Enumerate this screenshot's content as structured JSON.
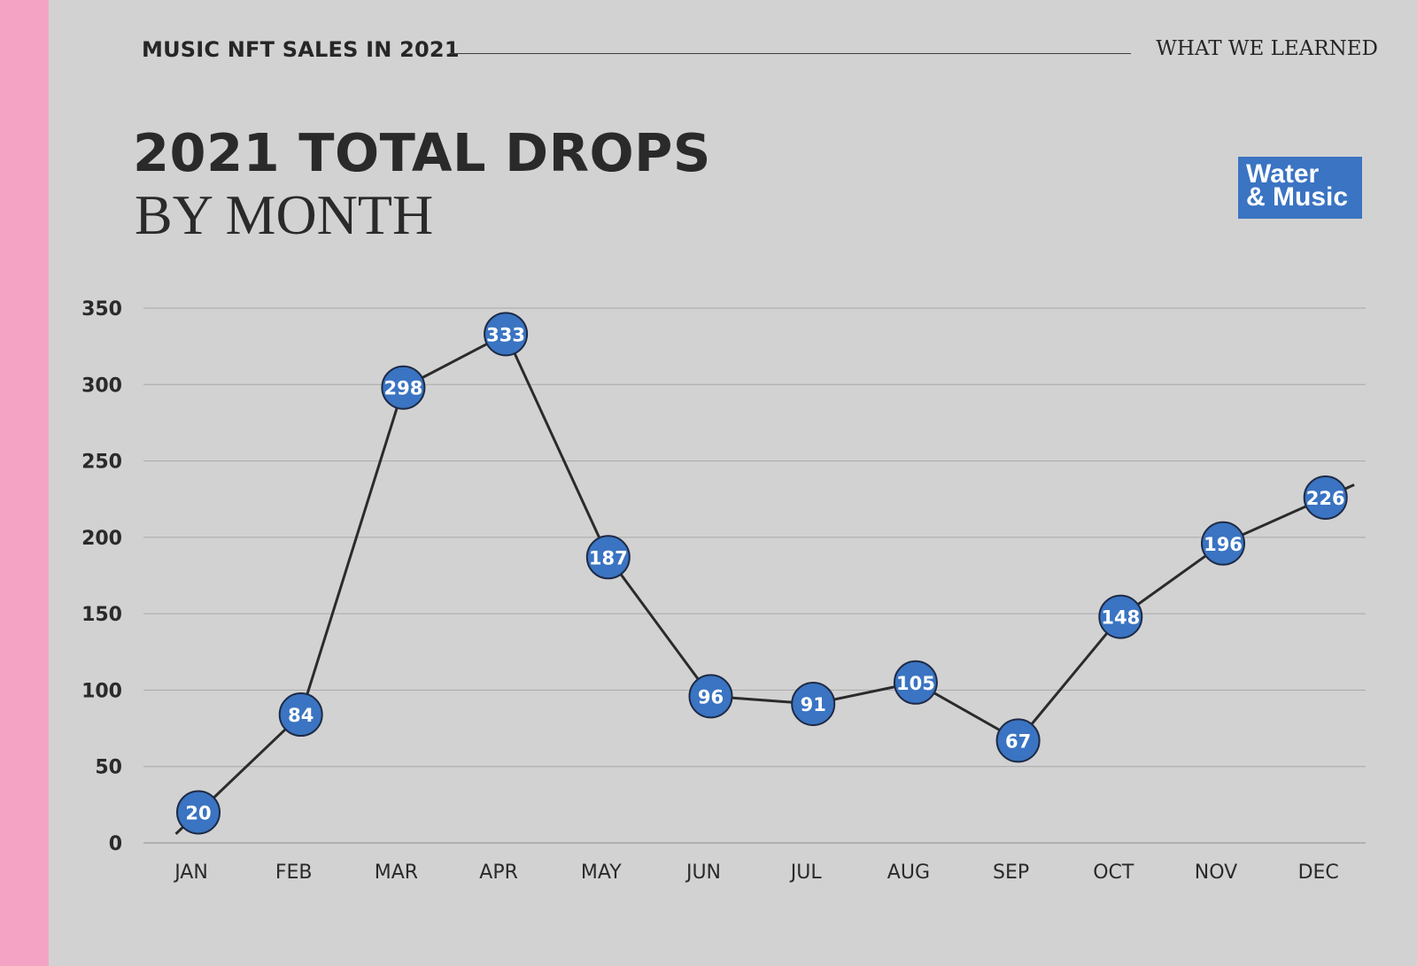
{
  "header": {
    "section_label": "MUSIC NFT SALES IN 2021",
    "right_label": "WHAT WE LEARNED"
  },
  "title": {
    "main": "2021 TOTAL DROPS",
    "sub": "BY MONTH"
  },
  "logo": {
    "line1": "Water",
    "line2": "& Music"
  },
  "colors": {
    "background": "#d2d2d2",
    "accent_pink": "#f5a3c4",
    "marker_blue": "#3a74c2",
    "line": "#2b2b2b",
    "grid": "#a8a8a8"
  },
  "chart_data": {
    "type": "line",
    "title": "2021 TOTAL DROPS BY MONTH",
    "xlabel": "",
    "ylabel": "",
    "categories": [
      "JAN",
      "FEB",
      "MAR",
      "APR",
      "MAY",
      "JUN",
      "JUL",
      "AUG",
      "SEP",
      "OCT",
      "NOV",
      "DEC"
    ],
    "values": [
      20,
      84,
      298,
      333,
      187,
      96,
      91,
      105,
      67,
      148,
      196,
      226
    ],
    "ylim": [
      0,
      350
    ],
    "yticks": [
      0,
      50,
      100,
      150,
      200,
      250,
      300,
      350
    ],
    "grid": true,
    "legend": "none"
  }
}
